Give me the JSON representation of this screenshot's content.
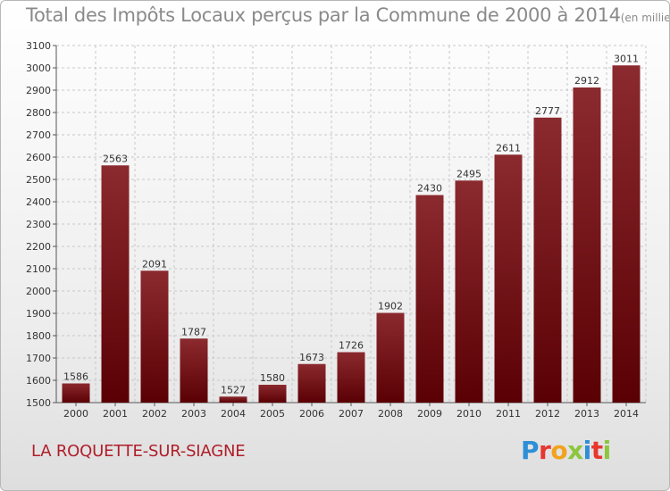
{
  "title": "Total des Impôts Locaux perçus par la Commune de 2000 à 2014",
  "title_unit": "(en milliers d'€)",
  "commune": "LA ROQUETTE-SUR-SIAGNE",
  "logo": {
    "text": "Proxiti",
    "letters": [
      {
        "ch": "P",
        "color": "#2e8fd6"
      },
      {
        "ch": "r",
        "color": "#e7372f"
      },
      {
        "ch": "o",
        "color": "#f2a21d"
      },
      {
        "ch": "x",
        "color": "#8cc63e"
      },
      {
        "ch": "i",
        "color": "#2e8fd6"
      },
      {
        "ch": "t",
        "color": "#e7372f"
      },
      {
        "ch": "i",
        "color": "#8cc63e"
      }
    ]
  },
  "colors": {
    "bar_top": "#8b2a2f",
    "bar_bottom": "#5a0004",
    "grid": "#c8c8c8",
    "axis_text": "#333333"
  },
  "chart_data": {
    "type": "bar",
    "title": "Total des Impôts Locaux perçus par la Commune de 2000 à 2014",
    "xlabel": "",
    "ylabel": "en milliers d'€",
    "categories": [
      "2000",
      "2001",
      "2002",
      "2003",
      "2004",
      "2005",
      "2006",
      "2007",
      "2008",
      "2009",
      "2010",
      "2011",
      "2012",
      "2013",
      "2014"
    ],
    "values": [
      1586,
      2563,
      2091,
      1787,
      1527,
      1580,
      1673,
      1726,
      1902,
      2430,
      2495,
      2611,
      2777,
      2912,
      3011
    ],
    "ylim": [
      1500,
      3100
    ],
    "yticks": [
      1500,
      1600,
      1700,
      1800,
      1900,
      2000,
      2100,
      2200,
      2300,
      2400,
      2500,
      2600,
      2700,
      2800,
      2900,
      3000,
      3100
    ],
    "grid": true,
    "legend": "none"
  }
}
